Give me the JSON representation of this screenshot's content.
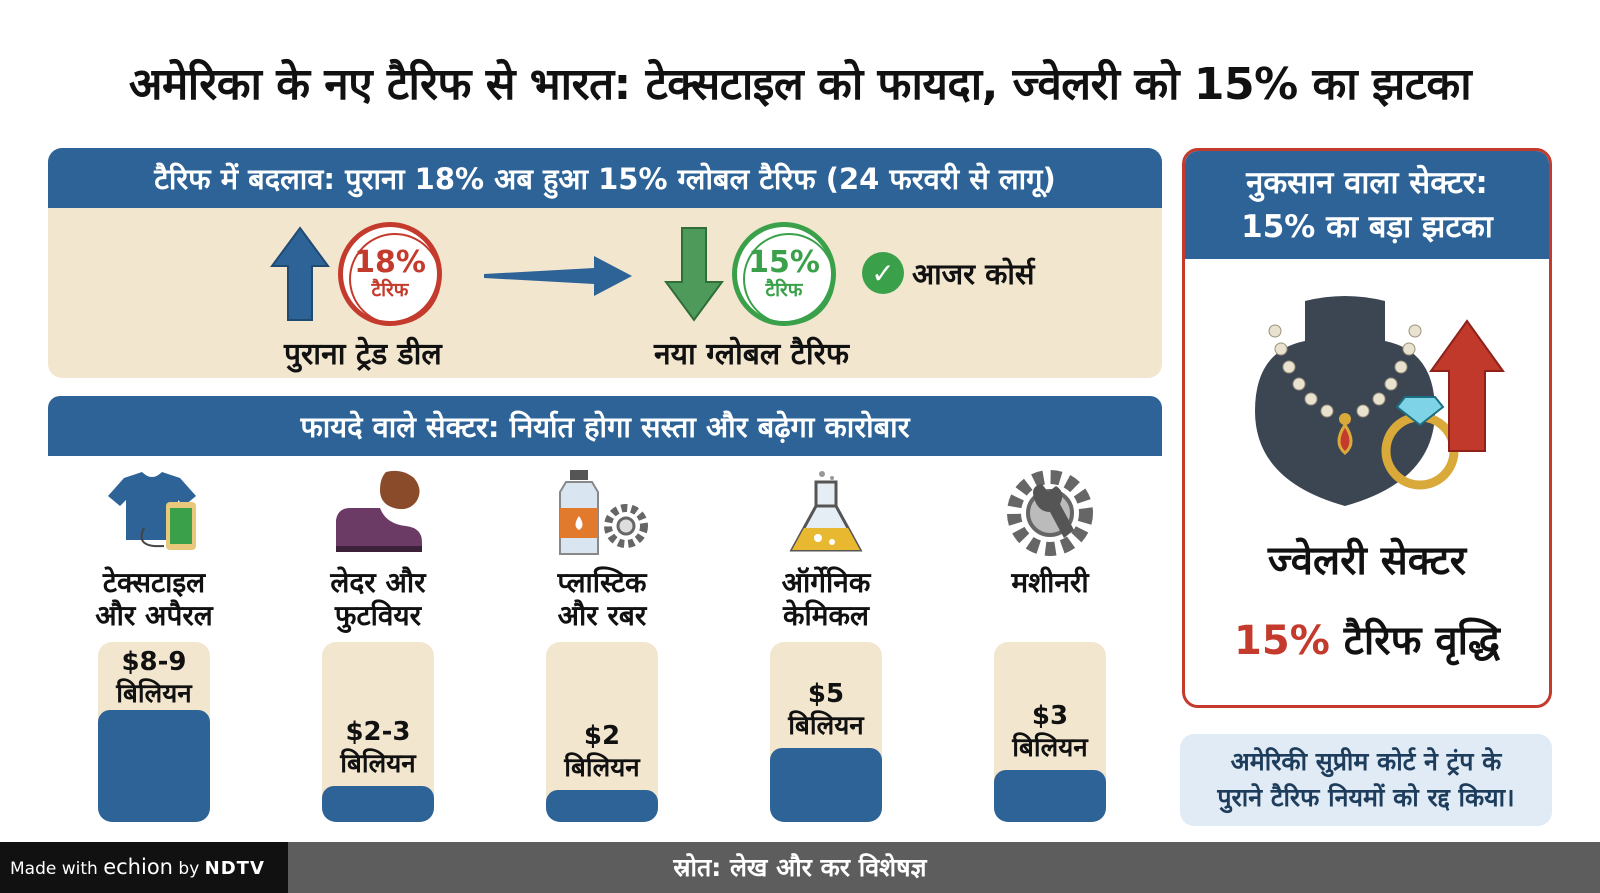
{
  "title": "अमेरिका के नए टैरिफ से भारत: टेक्सटाइल को फायदा, ज्वेलरी को 15% का झटका",
  "tariff_change": {
    "header": "टैरिफ में बदलाव: पुराना 18% अब हुआ 15% ग्लोबल टैरिफ (24 फरवरी से लागू)",
    "old": {
      "percent": "18%",
      "stamp_label": "टैरिफ",
      "caption": "पुराना ट्रेड डील",
      "arrow_icon": "arrow-up-icon"
    },
    "new": {
      "percent": "15%",
      "stamp_label": "टैरिफ",
      "caption": "नया ग्लोबल टैरिफ",
      "arrow_icon": "arrow-down-icon"
    },
    "check_text": "आजर कोर्स"
  },
  "benefit": {
    "header": "फायदे वाले सेक्टर: निर्यात होगा सस्ता और बढ़ेगा कारोबार",
    "sectors": [
      {
        "name_line1": "टेक्सटाइल",
        "name_line2": "और अपैरल",
        "value_line1": "$8-9",
        "value_line2": "बिलियन",
        "level": 0.62,
        "icon": "tshirt-thread-icon"
      },
      {
        "name_line1": "लेदर और",
        "name_line2": "फुटवियर",
        "value_line1": "$2-3",
        "value_line2": "बिलियन",
        "level": 0.2,
        "icon": "shoe-leather-icon"
      },
      {
        "name_line1": "प्लास्टिक",
        "name_line2": "और रबर",
        "value_line1": "$2",
        "value_line2": "बिलियन",
        "level": 0.18,
        "icon": "bottle-gear-icon"
      },
      {
        "name_line1": "ऑर्गेनिक",
        "name_line2": "केमिकल",
        "value_line1": "$5",
        "value_line2": "बिलियन",
        "level": 0.41,
        "icon": "flask-icon"
      },
      {
        "name_line1": "मशीनरी",
        "name_line2": "",
        "value_line1": "$3",
        "value_line2": "बिलियन",
        "level": 0.29,
        "icon": "gear-wrench-icon"
      }
    ]
  },
  "loss": {
    "header_line1": "नुकसान वाला सेक्टर:",
    "header_line2": "15% का बड़ा झटका",
    "sector": "ज्वेलरी सेक्टर",
    "increase_percent": "15%",
    "increase_text": "टैरिफ वृद्धि",
    "icon": "necklace-ring-icon"
  },
  "court_note": {
    "line1": "अमेरिकी सुप्रीम कोर्ट ने ट्रंप के",
    "line2": "पुराने टैरिफ नियमों को रद्द किया।"
  },
  "footer": {
    "source": "स्रोत: लेख और कर विशेषज्ञ",
    "made_with": "Made with",
    "brand": "echion",
    "by": "by",
    "publisher": "NDTV"
  },
  "colors": {
    "blue": "#2d6396",
    "beige": "#f3e6cf",
    "red": "#c43a2c",
    "green": "#3aa14a"
  }
}
